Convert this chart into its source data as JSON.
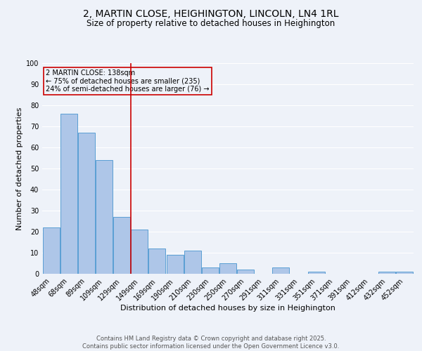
{
  "title_line1": "2, MARTIN CLOSE, HEIGHINGTON, LINCOLN, LN4 1RL",
  "title_line2": "Size of property relative to detached houses in Heighington",
  "categories": [
    "48sqm",
    "68sqm",
    "89sqm",
    "109sqm",
    "129sqm",
    "149sqm",
    "169sqm",
    "190sqm",
    "210sqm",
    "230sqm",
    "250sqm",
    "270sqm",
    "291sqm",
    "311sqm",
    "331sqm",
    "351sqm",
    "371sqm",
    "391sqm",
    "412sqm",
    "432sqm",
    "452sqm"
  ],
  "values": [
    22,
    76,
    67,
    54,
    27,
    21,
    12,
    9,
    11,
    3,
    5,
    2,
    0,
    3,
    0,
    1,
    0,
    0,
    0,
    1,
    1
  ],
  "bar_color": "#aec6e8",
  "bar_edge_color": "#5a9fd4",
  "xlabel": "Distribution of detached houses by size in Heighington",
  "ylabel": "Number of detached properties",
  "ylim": [
    0,
    100
  ],
  "yticks": [
    0,
    10,
    20,
    30,
    40,
    50,
    60,
    70,
    80,
    90,
    100
  ],
  "vline_color": "#cc0000",
  "annotation_title": "2 MARTIN CLOSE: 138sqm",
  "annotation_line1": "← 75% of detached houses are smaller (235)",
  "annotation_line2": "24% of semi-detached houses are larger (76) →",
  "annotation_box_color": "#cc0000",
  "footer_line1": "Contains HM Land Registry data © Crown copyright and database right 2025.",
  "footer_line2": "Contains public sector information licensed under the Open Government Licence v3.0.",
  "bg_color": "#eef2f9",
  "grid_color": "#ffffff",
  "title_fontsize": 10,
  "subtitle_fontsize": 8.5,
  "axis_label_fontsize": 8,
  "tick_fontsize": 7,
  "footer_fontsize": 6
}
